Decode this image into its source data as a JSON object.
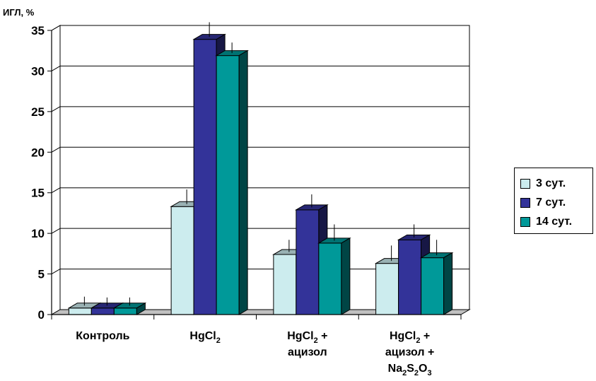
{
  "chart_data": {
    "type": "bar",
    "ylabel": "ИГЛ, %",
    "ylim": [
      0,
      35
    ],
    "yticks": [
      0,
      5,
      10,
      15,
      20,
      25,
      30,
      35
    ],
    "grid": true,
    "legend_position": "right",
    "categories": [
      {
        "lines": [
          [
            {
              "t": "Контроль"
            }
          ]
        ]
      },
      {
        "lines": [
          [
            {
              "t": "HgCl"
            },
            {
              "t": "2",
              "sub": true
            }
          ]
        ]
      },
      {
        "lines": [
          [
            {
              "t": "HgCl"
            },
            {
              "t": "2",
              "sub": true
            },
            {
              "t": " +"
            }
          ],
          [
            {
              "t": "ацизол"
            }
          ]
        ]
      },
      {
        "lines": [
          [
            {
              "t": "HgCl"
            },
            {
              "t": "2",
              "sub": true
            },
            {
              "t": " +"
            }
          ],
          [
            {
              "t": "ацизол +"
            }
          ],
          [
            {
              "t": "Na"
            },
            {
              "t": "2",
              "sub": true
            },
            {
              "t": "S"
            },
            {
              "t": "2",
              "sub": true
            },
            {
              "t": "O"
            },
            {
              "t": "3",
              "sub": true
            }
          ]
        ]
      }
    ],
    "series": [
      {
        "name": "3 сут.",
        "color": "#CCECEE",
        "values": [
          0.8,
          13.3,
          7.4,
          6.3
        ],
        "errors": [
          1.1,
          1.8,
          1.5,
          1.9
        ]
      },
      {
        "name": "7 сут.",
        "color": "#333399",
        "values": [
          0.8,
          33.9,
          12.9,
          9.2
        ],
        "errors": [
          1.0,
          1.8,
          1.6,
          1.6
        ]
      },
      {
        "name": "14 сут.",
        "color": "#009999",
        "values": [
          0.8,
          31.9,
          8.8,
          7.0
        ],
        "errors": [
          1.0,
          1.3,
          2.0,
          1.9
        ]
      }
    ]
  }
}
